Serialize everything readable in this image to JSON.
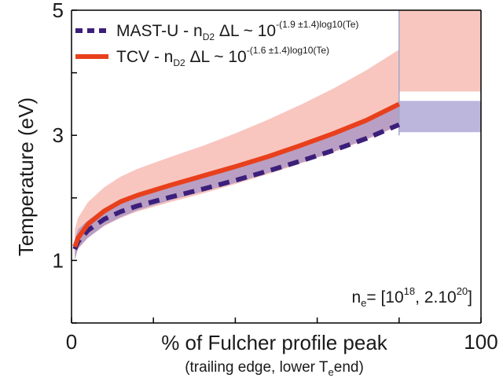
{
  "chart_data": {
    "type": "line",
    "xlabel": "% of Fulcher profile peak",
    "xlabel_sub": {
      "pre": "(trailing edge, lower T",
      "sub": "e",
      "post": "end)"
    },
    "ylabel": "Temperature (eV)",
    "xlim": [
      0,
      100
    ],
    "ylim": [
      0,
      5
    ],
    "x_ticks": [
      0,
      100
    ],
    "y_ticks": [
      1,
      3,
      5
    ],
    "legend_position": "top-left",
    "annotation": {
      "pre": "n",
      "sub": "e",
      "mid1": "= [10",
      "sup1": "18",
      "mid2": ", 2.10",
      "sup2": "20",
      "post": "]"
    },
    "series": [
      {
        "name": "MAST-U",
        "legend": {
          "pre": "MAST-U - n",
          "sub": "D2",
          "mid": " ΔL ~ 10",
          "sup": "-(1.9 ±1.4)log10(Te)"
        },
        "color": "#3b1f7a",
        "band_color": "#8f86c7",
        "style": "dashed",
        "x": [
          1,
          2,
          5,
          10,
          15,
          20,
          30,
          40,
          50,
          60,
          70,
          80,
          90,
          100
        ],
        "y": [
          1.18,
          1.3,
          1.48,
          1.66,
          1.78,
          1.87,
          2.01,
          2.14,
          2.28,
          2.43,
          2.59,
          2.76,
          2.95,
          3.17
        ],
        "band_lower": [
          1.0,
          1.2,
          1.36,
          1.56,
          1.69,
          1.8,
          1.96,
          2.1,
          2.24,
          2.4,
          2.56,
          2.74,
          2.94,
          3.16
        ],
        "band_upper": [
          1.34,
          1.5,
          1.64,
          1.83,
          1.96,
          2.05,
          2.18,
          2.33,
          2.47,
          2.64,
          2.81,
          3.0,
          3.22,
          3.48
        ],
        "band_flat_lower": 3.05,
        "band_flat_upper": 3.55
      },
      {
        "name": "TCV",
        "legend": {
          "pre": "TCV - n",
          "sub": "D2",
          "mid": " ΔL ~ 10",
          "sup": "-(1.6 ±1.4)log10(Te)"
        },
        "color": "#e8401c",
        "band_color": "#f3a095",
        "style": "solid",
        "x": [
          1,
          2,
          5,
          10,
          15,
          20,
          30,
          40,
          50,
          60,
          70,
          80,
          90,
          100
        ],
        "y": [
          1.22,
          1.36,
          1.58,
          1.79,
          1.94,
          2.04,
          2.2,
          2.35,
          2.5,
          2.66,
          2.84,
          3.03,
          3.24,
          3.5
        ],
        "band_lower": [
          1.02,
          1.18,
          1.36,
          1.55,
          1.68,
          1.78,
          1.93,
          2.07,
          2.22,
          2.38,
          2.55,
          2.73,
          2.93,
          3.15
        ],
        "band_upper": [
          1.5,
          1.68,
          1.93,
          2.17,
          2.34,
          2.46,
          2.65,
          2.83,
          3.03,
          3.25,
          3.49,
          3.75,
          4.04,
          4.37
        ],
        "band_flat_lower": 3.7,
        "band_flat_upper": 5.0
      }
    ]
  }
}
